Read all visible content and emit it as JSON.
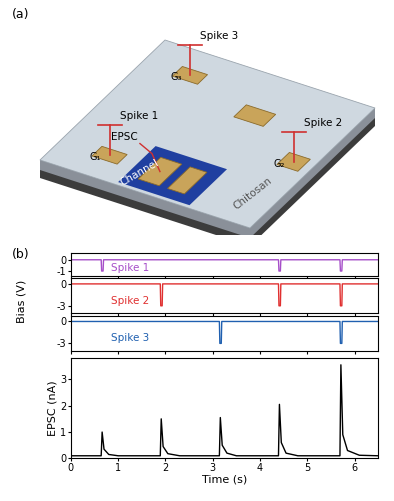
{
  "panel_a": {
    "label": "(a)",
    "spikes": [
      "Spike 1",
      "Spike 2",
      "Spike 3"
    ],
    "gates": [
      "G₁",
      "G₂",
      "G₃"
    ],
    "epsc": "EPSC",
    "channel": "Channel",
    "substrate": "Chitosan"
  },
  "panel_b": {
    "label": "(b)",
    "y_label": "Bias (V)"
  },
  "chart_data": [
    {
      "type": "line",
      "tick_labels": "y",
      "xlim": [
        0,
        6.5
      ],
      "xticks": [
        0,
        1,
        2,
        3,
        4,
        5,
        6
      ],
      "ylim": [
        -1.4,
        0.6
      ],
      "yticks": [
        -1,
        0
      ],
      "x": [
        0,
        0.64,
        0.65,
        0.68,
        0.69,
        4.39,
        4.4,
        4.43,
        4.44,
        5.69,
        5.7,
        5.73,
        5.74,
        6.5
      ],
      "series": [
        {
          "name": "Spike 1",
          "color": "#a64fc9",
          "values": [
            0,
            0,
            -1,
            -1,
            0,
            0,
            -1,
            -1,
            0,
            0,
            -1,
            -1,
            0,
            0
          ]
        }
      ]
    },
    {
      "type": "line",
      "tick_labels": "y",
      "xlim": [
        0,
        6.5
      ],
      "xticks": [
        0,
        1,
        2,
        3,
        4,
        5,
        6
      ],
      "ylim": [
        -4,
        0.8
      ],
      "yticks": [
        -3,
        0
      ],
      "x": [
        0,
        1.89,
        1.9,
        1.93,
        1.94,
        4.39,
        4.4,
        4.43,
        4.44,
        5.69,
        5.7,
        5.73,
        5.74,
        6.5
      ],
      "series": [
        {
          "name": "Spike 2",
          "color": "#e03030",
          "values": [
            0,
            0,
            -3,
            -3,
            0,
            0,
            -3,
            -3,
            0,
            0,
            -3,
            -3,
            0,
            0
          ]
        }
      ]
    },
    {
      "type": "line",
      "tick_labels": "y",
      "xlim": [
        0,
        6.5
      ],
      "xticks": [
        0,
        1,
        2,
        3,
        4,
        5,
        6
      ],
      "ylim": [
        -4,
        0.8
      ],
      "yticks": [
        -3,
        0
      ],
      "x": [
        0,
        3.14,
        3.15,
        3.18,
        3.19,
        5.69,
        5.7,
        5.73,
        5.74,
        6.5
      ],
      "series": [
        {
          "name": "Spike 3",
          "color": "#2060b0",
          "values": [
            0,
            0,
            -3,
            -3,
            0,
            0,
            -3,
            -3,
            0,
            0
          ]
        }
      ]
    },
    {
      "type": "line",
      "x_label": "Time (s)",
      "y_label": "EPSC (nA)",
      "xlim": [
        0,
        6.5
      ],
      "xticks": [
        0,
        1,
        2,
        3,
        4,
        5,
        6
      ],
      "ylim": [
        0,
        3.8
      ],
      "yticks": [
        0,
        1,
        2,
        3
      ],
      "x": [
        0,
        0.64,
        0.66,
        0.7,
        0.8,
        1.0,
        1.89,
        1.91,
        1.95,
        2.05,
        2.3,
        3.14,
        3.16,
        3.2,
        3.3,
        3.5,
        4.39,
        4.41,
        4.45,
        4.55,
        4.8,
        5.69,
        5.71,
        5.75,
        5.85,
        6.1,
        6.5
      ],
      "series": [
        {
          "color": "#000000",
          "values": [
            0.1,
            0.1,
            1.0,
            0.35,
            0.15,
            0.1,
            0.1,
            1.5,
            0.45,
            0.18,
            0.1,
            0.1,
            1.55,
            0.5,
            0.2,
            0.1,
            0.1,
            2.05,
            0.6,
            0.2,
            0.1,
            0.1,
            3.55,
            0.9,
            0.3,
            0.12,
            0.1
          ]
        }
      ]
    }
  ]
}
